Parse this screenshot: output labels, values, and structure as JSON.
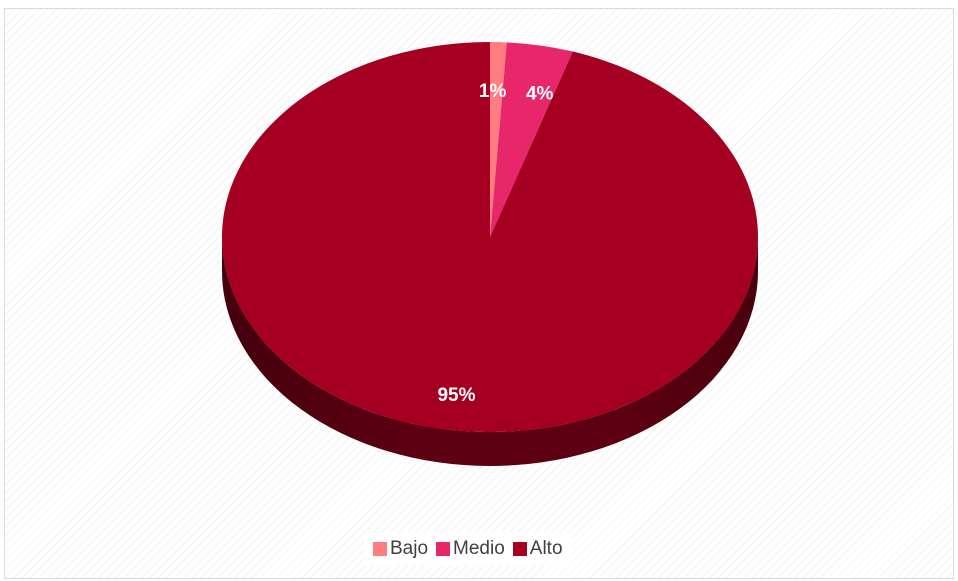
{
  "chart_data": {
    "type": "pie",
    "style": "3d",
    "categories": [
      "Bajo",
      "Medio",
      "Alto"
    ],
    "values": [
      1,
      4,
      95
    ],
    "data_labels": [
      "1%",
      "4%",
      "95%"
    ],
    "colors": [
      "#ff7c80",
      "#e8266a",
      "#a50021"
    ],
    "side_colors": [
      "#b85a5d",
      "#a51b4c",
      "#5c0012"
    ],
    "legend_position": "bottom",
    "title": ""
  },
  "legend": {
    "items": [
      {
        "label": "Bajo",
        "color": "#ff7c80"
      },
      {
        "label": "Medio",
        "color": "#e8266a"
      },
      {
        "label": "Alto",
        "color": "#a50021"
      }
    ]
  }
}
